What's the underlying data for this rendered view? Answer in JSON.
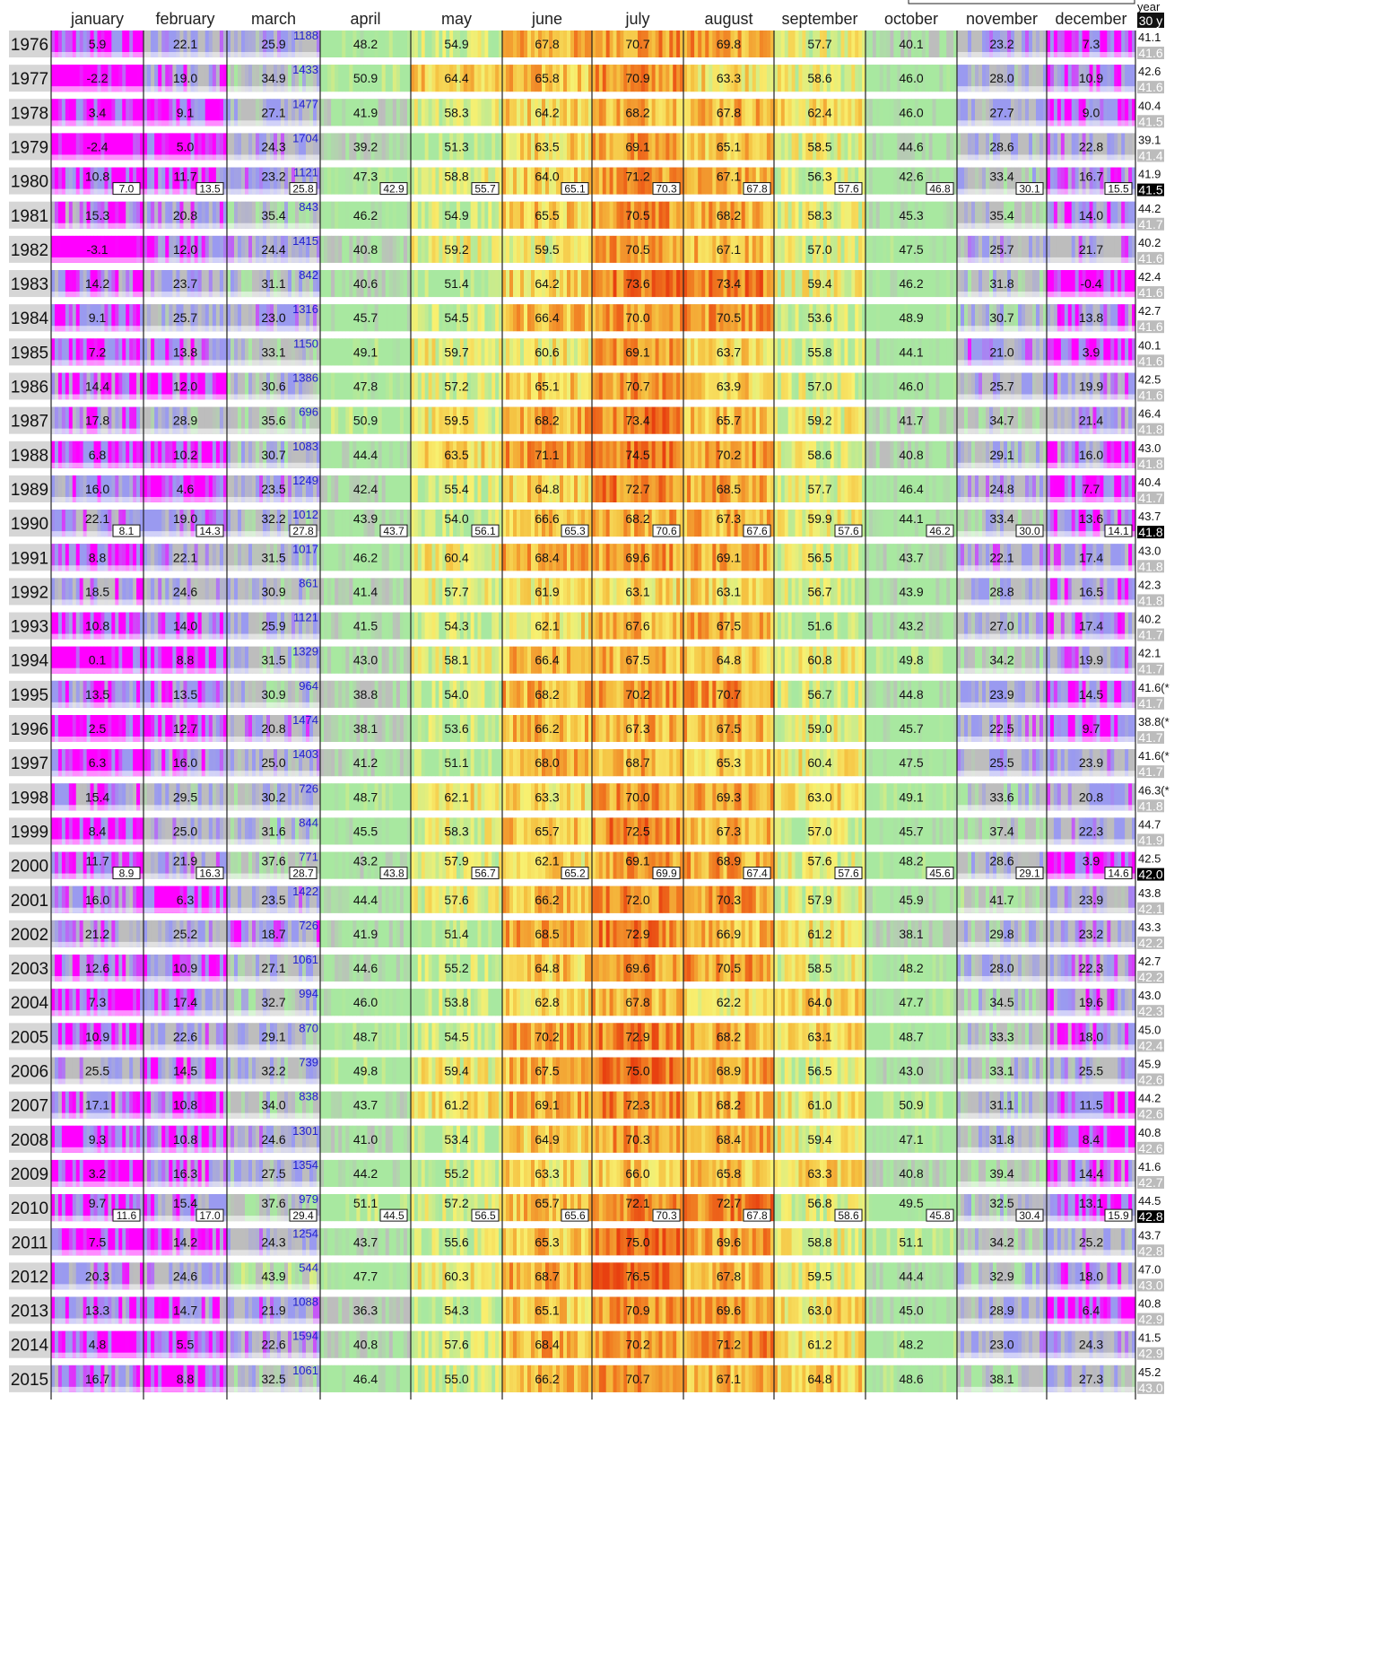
{
  "chart_data": {
    "type": "heatmap",
    "months": [
      "january",
      "february",
      "march",
      "april",
      "may",
      "june",
      "july",
      "august",
      "september",
      "october",
      "november",
      "december"
    ],
    "header_right": {
      "year_label": "year",
      "normal_label": "30 y"
    },
    "years": [
      1976,
      1977,
      1978,
      1979,
      1980,
      1981,
      1982,
      1983,
      1984,
      1985,
      1986,
      1987,
      1988,
      1989,
      1990,
      1991,
      1992,
      1993,
      1994,
      1995,
      1996,
      1997,
      1998,
      1999,
      2000,
      2001,
      2002,
      2003,
      2004,
      2005,
      2006,
      2007,
      2008,
      2009,
      2010,
      2011,
      2012,
      2013,
      2014,
      2015
    ],
    "monthly_mean": [
      [
        5.9,
        22.1,
        25.9,
        48.2,
        54.9,
        67.8,
        70.7,
        69.8,
        57.7,
        40.1,
        23.2,
        7.3
      ],
      [
        -2.2,
        19.0,
        34.9,
        50.9,
        64.4,
        65.8,
        70.9,
        63.3,
        58.6,
        46.0,
        28.0,
        10.9
      ],
      [
        3.4,
        9.1,
        27.1,
        41.9,
        58.3,
        64.2,
        68.2,
        67.8,
        62.4,
        46.0,
        27.7,
        9.0
      ],
      [
        -2.4,
        5.0,
        24.3,
        39.2,
        51.3,
        63.5,
        69.1,
        65.1,
        58.5,
        44.6,
        28.6,
        22.8
      ],
      [
        10.8,
        11.7,
        23.2,
        47.3,
        58.8,
        64.0,
        71.2,
        67.1,
        56.3,
        42.6,
        33.4,
        16.7
      ],
      [
        15.3,
        20.8,
        35.4,
        46.2,
        54.9,
        65.5,
        70.5,
        68.2,
        58.3,
        45.3,
        35.4,
        14.0
      ],
      [
        -3.1,
        12.0,
        24.4,
        40.8,
        59.2,
        59.5,
        70.5,
        67.1,
        57.0,
        47.5,
        25.7,
        21.7
      ],
      [
        14.2,
        23.7,
        31.1,
        40.6,
        51.4,
        64.2,
        73.6,
        73.4,
        59.4,
        46.2,
        31.8,
        -0.4
      ],
      [
        9.1,
        25.7,
        23.0,
        45.7,
        54.5,
        66.4,
        70.0,
        70.5,
        53.6,
        48.9,
        30.7,
        13.8
      ],
      [
        7.2,
        13.8,
        33.1,
        49.1,
        59.7,
        60.6,
        69.1,
        63.7,
        55.8,
        44.1,
        21.0,
        3.9
      ],
      [
        14.4,
        12.0,
        30.6,
        47.8,
        57.2,
        65.1,
        70.7,
        63.9,
        57.0,
        46.0,
        25.7,
        19.9
      ],
      [
        17.8,
        28.9,
        35.6,
        50.9,
        59.5,
        68.2,
        73.4,
        65.7,
        59.2,
        41.7,
        34.7,
        21.4
      ],
      [
        6.8,
        10.2,
        30.7,
        44.4,
        63.5,
        71.1,
        74.5,
        70.2,
        58.6,
        40.8,
        29.1,
        16.0
      ],
      [
        16.0,
        4.6,
        23.5,
        42.4,
        55.4,
        64.8,
        72.7,
        68.5,
        57.7,
        46.4,
        24.8,
        7.7
      ],
      [
        22.1,
        19.0,
        32.2,
        43.9,
        54.0,
        66.6,
        68.2,
        67.3,
        59.9,
        44.1,
        33.4,
        13.6
      ],
      [
        8.8,
        22.1,
        31.5,
        46.2,
        60.4,
        68.4,
        69.6,
        69.1,
        56.5,
        43.7,
        22.1,
        17.4
      ],
      [
        18.5,
        24.6,
        30.9,
        41.4,
        57.7,
        61.9,
        63.1,
        63.1,
        56.7,
        43.9,
        28.8,
        16.5
      ],
      [
        10.8,
        14.0,
        25.9,
        41.5,
        54.3,
        62.1,
        67.6,
        67.5,
        51.6,
        43.2,
        27.0,
        17.4
      ],
      [
        0.1,
        8.8,
        31.5,
        43.0,
        58.1,
        66.4,
        67.5,
        64.8,
        60.8,
        49.8,
        34.2,
        19.9
      ],
      [
        13.5,
        13.5,
        30.9,
        38.8,
        54.0,
        68.2,
        70.2,
        70.7,
        56.7,
        44.8,
        23.9,
        14.5
      ],
      [
        2.5,
        12.7,
        20.8,
        38.1,
        53.6,
        66.2,
        67.3,
        67.5,
        59.0,
        45.7,
        22.5,
        9.7
      ],
      [
        6.3,
        16.0,
        25.0,
        41.2,
        51.1,
        68.0,
        68.7,
        65.3,
        60.4,
        47.5,
        25.5,
        23.9
      ],
      [
        15.4,
        29.5,
        30.2,
        48.7,
        62.1,
        63.3,
        70.0,
        69.3,
        63.0,
        49.1,
        33.6,
        20.8
      ],
      [
        8.4,
        25.0,
        31.6,
        45.5,
        58.3,
        65.7,
        72.5,
        67.3,
        57.0,
        45.7,
        37.4,
        22.3
      ],
      [
        11.7,
        21.9,
        37.6,
        43.2,
        57.9,
        62.1,
        69.1,
        68.9,
        57.6,
        48.2,
        28.6,
        3.9
      ],
      [
        16.0,
        6.3,
        23.5,
        44.4,
        57.6,
        66.2,
        72.0,
        70.3,
        57.9,
        45.9,
        41.7,
        23.9
      ],
      [
        21.2,
        25.2,
        18.7,
        41.9,
        51.4,
        68.5,
        72.9,
        66.9,
        61.2,
        38.1,
        29.8,
        23.2
      ],
      [
        12.6,
        10.9,
        27.1,
        44.6,
        55.2,
        64.8,
        69.6,
        70.5,
        58.5,
        48.2,
        28.0,
        22.3
      ],
      [
        7.3,
        17.4,
        32.7,
        46.0,
        53.8,
        62.8,
        67.8,
        62.2,
        64.0,
        47.7,
        34.5,
        19.6
      ],
      [
        10.9,
        22.6,
        29.1,
        48.7,
        54.5,
        70.2,
        72.9,
        68.2,
        63.1,
        48.7,
        33.3,
        18.0
      ],
      [
        25.5,
        14.5,
        32.2,
        49.8,
        59.4,
        67.5,
        75.0,
        68.9,
        56.5,
        43.0,
        33.1,
        25.5
      ],
      [
        17.1,
        10.8,
        34.0,
        43.7,
        61.2,
        69.1,
        72.3,
        68.2,
        61.0,
        50.9,
        31.1,
        11.5
      ],
      [
        9.3,
        10.8,
        24.6,
        41.0,
        53.4,
        64.9,
        70.3,
        68.4,
        59.4,
        47.1,
        31.8,
        8.4
      ],
      [
        3.2,
        16.3,
        27.5,
        44.2,
        55.2,
        63.3,
        66.0,
        65.8,
        63.3,
        40.8,
        39.4,
        14.4
      ],
      [
        9.7,
        15.4,
        37.6,
        51.1,
        57.2,
        65.7,
        72.1,
        72.7,
        56.8,
        49.5,
        32.5,
        13.1
      ],
      [
        7.5,
        14.2,
        24.3,
        43.7,
        55.6,
        65.3,
        75.0,
        69.6,
        58.8,
        51.1,
        34.2,
        25.2
      ],
      [
        20.3,
        24.6,
        43.9,
        47.7,
        60.3,
        68.7,
        76.5,
        67.8,
        59.5,
        44.4,
        32.9,
        18.0
      ],
      [
        13.3,
        14.7,
        21.9,
        36.3,
        54.3,
        65.1,
        70.9,
        69.6,
        63.0,
        45.0,
        28.9,
        6.4
      ],
      [
        4.8,
        5.5,
        22.6,
        40.8,
        57.6,
        68.4,
        70.2,
        71.2,
        61.2,
        48.2,
        23.0,
        24.3
      ],
      [
        16.7,
        8.8,
        32.5,
        46.4,
        55.0,
        66.2,
        70.7,
        67.1,
        64.8,
        48.6,
        38.1,
        27.3
      ]
    ],
    "march_snow": [
      1188,
      1433,
      1477,
      1704,
      1121,
      843,
      1415,
      842,
      1316,
      1150,
      1386,
      696,
      1083,
      1249,
      1012,
      1017,
      861,
      1121,
      1329,
      964,
      1474,
      1403,
      726,
      844,
      771,
      1422,
      726,
      1061,
      994,
      870,
      739,
      838,
      1301,
      1354,
      979,
      1254,
      544,
      1088,
      1594,
      1061
    ],
    "annual_mean": [
      "41.1",
      "42.6",
      "40.4",
      "39.1",
      "41.9",
      "44.2",
      "40.2",
      "42.4",
      "42.7",
      "40.1",
      "42.5",
      "46.4",
      "43.0",
      "40.4",
      "43.7",
      "43.0",
      "42.3",
      "40.2",
      "42.1",
      "41.6(*",
      "38.8(*",
      "41.6(*",
      "46.3(*",
      "44.7",
      "42.5",
      "43.8",
      "43.3",
      "42.7",
      "43.0",
      "45.0",
      "45.9",
      "44.2",
      "40.8",
      "41.6",
      "44.5",
      "43.7",
      "47.0",
      "40.8",
      "41.5",
      "45.2"
    ],
    "annual_normal": [
      "41.6",
      "41.6",
      "41.5",
      "41.4",
      "41.5",
      "41.7",
      "41.6",
      "41.6",
      "41.6",
      "41.6",
      "41.6",
      "41.8",
      "41.8",
      "41.7",
      "41.8",
      "41.8",
      "41.8",
      "41.7",
      "41.7",
      "41.7",
      "41.7",
      "41.7",
      "41.8",
      "41.9",
      "42.0",
      "42.1",
      "42.2",
      "42.2",
      "42.3",
      "42.4",
      "42.6",
      "42.6",
      "42.6",
      "42.7",
      "42.8",
      "42.8",
      "43.0",
      "42.9",
      "42.9",
      "43.0"
    ],
    "normal_highlight_years": [
      1980,
      1990,
      2000,
      2010
    ],
    "monthly_normals": {
      "1980": [
        "7.0",
        "13.5",
        "25.8",
        "42.9",
        "55.7",
        "65.1",
        "70.3",
        "67.8",
        "57.6",
        "46.8",
        "30.1",
        "15.5"
      ],
      "1990": [
        "8.1",
        "14.3",
        "27.8",
        "43.7",
        "56.1",
        "65.3",
        "70.6",
        "67.6",
        "57.6",
        "46.2",
        "30.0",
        "14.1"
      ],
      "2000": [
        "8.9",
        "16.3",
        "28.7",
        "43.8",
        "56.7",
        "65.2",
        "69.9",
        "67.4",
        "57.6",
        "45.6",
        "29.1",
        "14.6"
      ],
      "2010": [
        "11.6",
        "17.0",
        "29.4",
        "44.5",
        "56.5",
        "65.6",
        "70.3",
        "67.8",
        "58.6",
        "45.8",
        "30.4",
        "15.9"
      ]
    },
    "scale": {
      "color_low": "#ff00ff",
      "color_mid_cold": "#9a9af0",
      "color_neutral": "#bdbdbd",
      "color_mild": "#a8e8a0",
      "color_warm": "#f8f070",
      "color_hot": "#f07820"
    }
  }
}
